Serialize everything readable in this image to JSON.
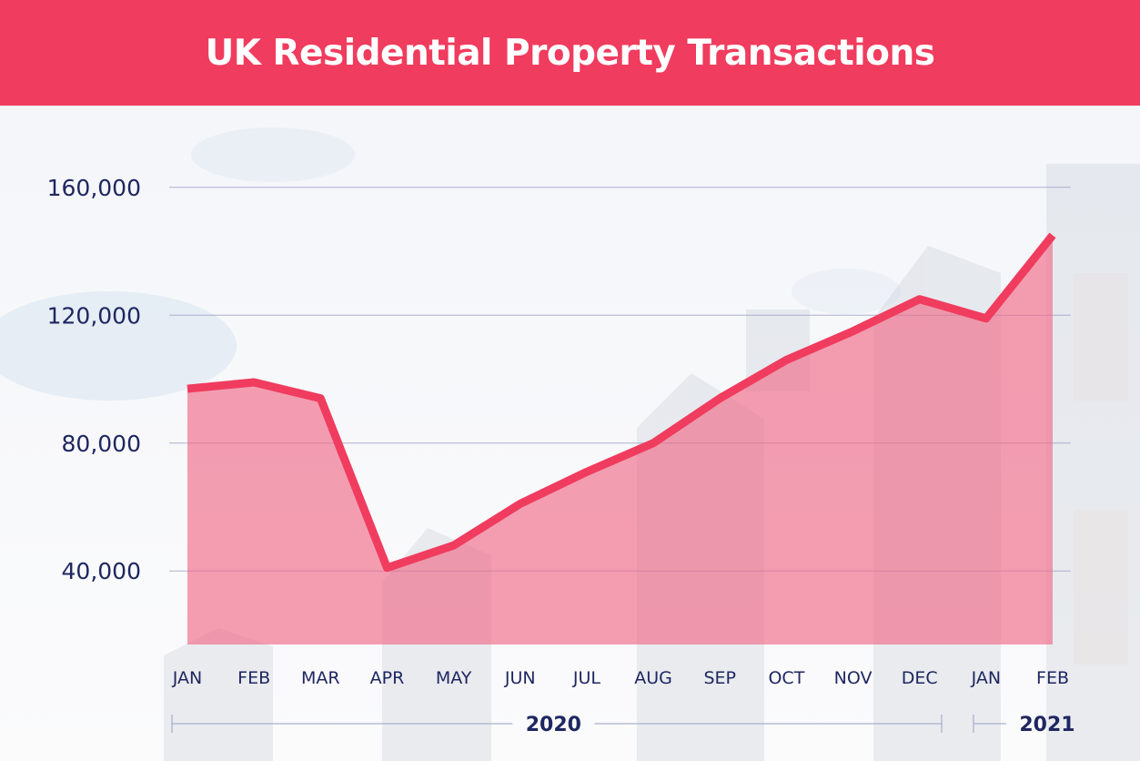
{
  "title": "UK Residential Property Transactions",
  "colors": {
    "header": "#f03c5e",
    "line": "#f03c5e",
    "area": "#f06482",
    "text": "#1f2761",
    "grid": "#9aa0c4"
  },
  "chart_data": {
    "type": "area",
    "title": "UK Residential Property Transactions",
    "categories": [
      "JAN",
      "FEB",
      "MAR",
      "APR",
      "MAY",
      "JUN",
      "JUL",
      "AUG",
      "SEP",
      "OCT",
      "NOV",
      "DEC",
      "JAN",
      "FEB"
    ],
    "year_groups": [
      {
        "label": "2020",
        "from": 0,
        "to": 11
      },
      {
        "label": "2021",
        "from": 12,
        "to": 13
      }
    ],
    "series": [
      {
        "values": [
          97000,
          99000,
          94000,
          41000,
          48000,
          61000,
          71000,
          80000,
          94000,
          106000,
          115000,
          125000,
          119000,
          145000
        ]
      }
    ],
    "yticks": [
      40000,
      80000,
      120000,
      160000
    ],
    "ytick_labels": [
      "40,000",
      "80,000",
      "120,000",
      "160,000"
    ],
    "ylim": [
      17000,
      185000
    ],
    "grid": true,
    "legend": "none",
    "xlabel": "",
    "ylabel": ""
  }
}
